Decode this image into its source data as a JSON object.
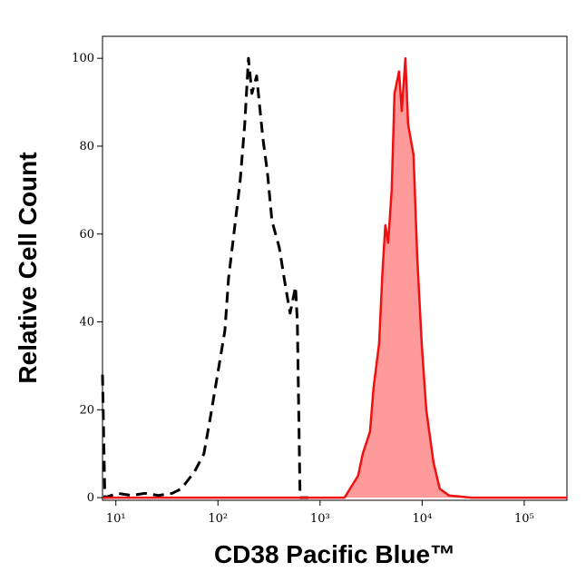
{
  "chart_data": {
    "type": "histogram-overlay",
    "xlabel": "CD38 Pacific Blue™",
    "ylabel": "Relative Cell Count",
    "xscale": "log",
    "xlim": [
      7.4,
      262000
    ],
    "ylim": [
      -0.6,
      105
    ],
    "xticks": [
      {
        "value": 10,
        "label": "10¹"
      },
      {
        "value": 100,
        "label": "10²"
      },
      {
        "value": 1000,
        "label": "10³"
      },
      {
        "value": 10000,
        "label": "10⁴"
      },
      {
        "value": 100000,
        "label": "10⁵"
      }
    ],
    "yticks": [
      0,
      20,
      40,
      60,
      80,
      100
    ],
    "series": [
      {
        "color": "#000000",
        "dashed": true,
        "x": [
          7.4,
          7.8,
          10.4,
          14.2,
          19.2,
          26.2,
          35.6,
          43.7,
          59.3,
          72.8,
          84,
          99,
          117,
          127,
          143,
          165,
          183,
          199,
          215,
          239,
          275,
          305,
          338,
          398,
          459,
          509,
          575,
          600,
          637,
          766
        ],
        "values": [
          28,
          0,
          1,
          0.5,
          1,
          0.5,
          1,
          2,
          6,
          10,
          18,
          28,
          38,
          50,
          60,
          72,
          85,
          100,
          92,
          96,
          82,
          74,
          63,
          57,
          48,
          42,
          48,
          40,
          0,
          0
        ]
      },
      {
        "color": "#ee1111",
        "fill": "#ff9a9a",
        "x": [
          7.4,
          1738,
          2362,
          2618,
          3083,
          3345,
          3784,
          4105,
          4365,
          4642,
          5037,
          5358,
          5934,
          6310,
          6850,
          7283,
          8238,
          8935,
          9908,
          10965,
          12912,
          14894,
          18281,
          30480,
          262000
        ],
        "values": [
          0,
          0,
          5,
          10,
          15,
          25,
          35,
          52,
          62,
          58,
          70,
          92,
          97,
          88,
          100,
          85,
          78,
          55,
          35,
          20,
          8,
          2,
          0.5,
          0,
          0
        ]
      }
    ]
  }
}
